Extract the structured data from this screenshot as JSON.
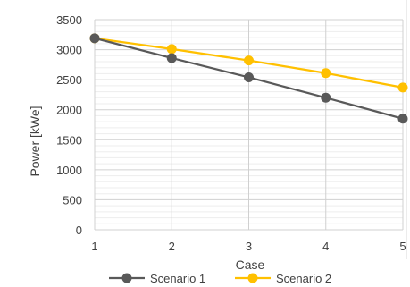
{
  "chart_data": {
    "type": "line",
    "x": [
      1,
      2,
      3,
      4,
      5
    ],
    "xlabel": "Case",
    "ylabel": "Power [kWe]",
    "xlim": [
      1,
      5
    ],
    "ylim": [
      0,
      3500
    ],
    "y_ticks": [
      0,
      500,
      1000,
      1500,
      2000,
      2500,
      3000,
      3500
    ],
    "x_ticks": [
      1,
      2,
      3,
      4,
      5
    ],
    "minor_gridlines_y": 100,
    "grid": true,
    "legend_position": "bottom",
    "series": [
      {
        "name": "Scenario 1",
        "values": [
          3190,
          2860,
          2540,
          2200,
          1850
        ],
        "color": "#595959"
      },
      {
        "name": "Scenario 2",
        "values": [
          3190,
          3010,
          2820,
          2610,
          2370
        ],
        "color": "#FFC000"
      }
    ]
  }
}
